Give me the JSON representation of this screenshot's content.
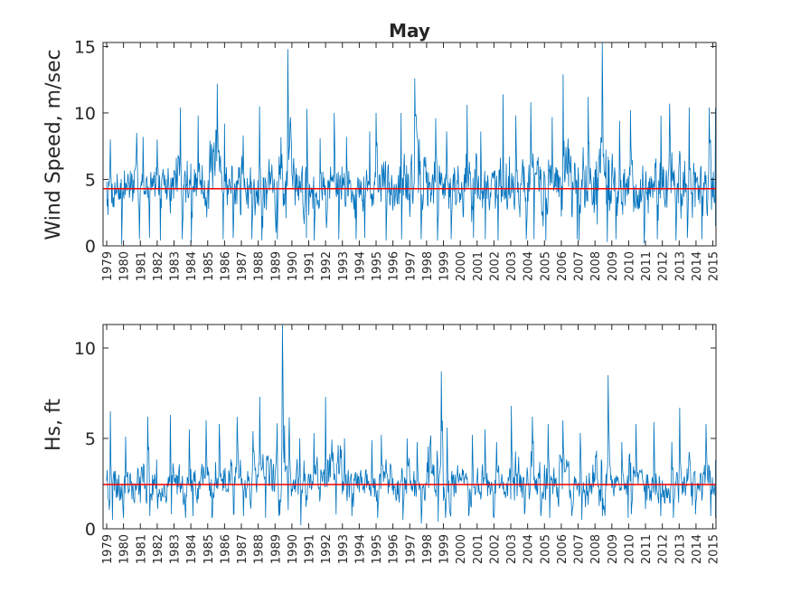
{
  "chart_data": [
    {
      "type": "line",
      "title": "May",
      "xlabel": "",
      "ylabel": "Wind Speed, m/sec",
      "ylim": [
        0,
        15.3
      ],
      "yticks": [
        0,
        5,
        10,
        15
      ],
      "grid": false,
      "xticks": [
        "1979",
        "1980",
        "1981",
        "1982",
        "1983",
        "1984",
        "1985",
        "1986",
        "1987",
        "1988",
        "1989",
        "1990",
        "1991",
        "1992",
        "1993",
        "1994",
        "1995",
        "1996",
        "1997",
        "1998",
        "1999",
        "2000",
        "2001",
        "2002",
        "2003",
        "2004",
        "2005",
        "2006",
        "2007",
        "2008",
        "2009",
        "2010",
        "2011",
        "2012",
        "2013",
        "2014",
        "2015"
      ],
      "series_color": "#0072bd",
      "mean_value": 4.3,
      "mean_color": "#ff0000",
      "years": [
        1979,
        1980,
        1981,
        1982,
        1983,
        1984,
        1985,
        1986,
        1987,
        1988,
        1989,
        1990,
        1991,
        1992,
        1993,
        1994,
        1995,
        1996,
        1997,
        1998,
        1999,
        2000,
        2001,
        2002,
        2003,
        2004,
        2005,
        2006,
        2007,
        2008,
        2009,
        2010,
        2011,
        2012,
        2013,
        2014,
        2015
      ],
      "yearly_min": [
        0.1,
        0.5,
        0.6,
        0.4,
        0.5,
        0.3,
        0.5,
        0.6,
        0.5,
        0.4,
        0.5,
        0.6,
        0.4,
        0.5,
        0.5,
        0.6,
        0.4,
        0.5,
        0.5,
        0.4,
        0.5,
        0.6,
        0.5,
        0.4,
        0.5,
        0.5,
        0.4,
        0.5,
        0.4,
        0.3,
        0.5,
        0.2,
        0.5,
        0.4,
        0.6,
        0.5,
        1.5
      ],
      "yearly_max": [
        8.0,
        8.5,
        8.2,
        8.0,
        10.4,
        9.8,
        12.2,
        9.2,
        8.3,
        10.5,
        14.8,
        10.3,
        8.1,
        10.0,
        8.2,
        8.6,
        10.0,
        10.0,
        12.6,
        9.6,
        8.6,
        10.6,
        8.6,
        11.4,
        9.8,
        10.8,
        9.7,
        12.9,
        11.2,
        15.3,
        9.4,
        10.2,
        9.8,
        10.7,
        10.4,
        10.4,
        10.4
      ],
      "yearly_mean": [
        4.2,
        4.3,
        4.3,
        4.2,
        4.6,
        4.3,
        4.8,
        4.2,
        4.2,
        4.4,
        4.7,
        4.3,
        4.1,
        4.3,
        4.1,
        4.2,
        4.4,
        4.3,
        4.6,
        4.3,
        4.2,
        4.4,
        4.2,
        4.4,
        4.3,
        4.3,
        4.3,
        4.5,
        4.4,
        4.6,
        4.2,
        4.3,
        4.3,
        4.4,
        4.3,
        4.4,
        4.5
      ]
    },
    {
      "type": "line",
      "title": "",
      "xlabel": "",
      "ylabel": "Hs, ft",
      "ylim": [
        0,
        11.3
      ],
      "yticks": [
        0,
        5,
        10
      ],
      "grid": false,
      "xticks": [
        "1979",
        "1980",
        "1981",
        "1982",
        "1983",
        "1984",
        "1985",
        "1986",
        "1987",
        "1988",
        "1989",
        "1990",
        "1991",
        "1992",
        "1993",
        "1994",
        "1995",
        "1996",
        "1997",
        "1998",
        "1999",
        "2000",
        "2001",
        "2002",
        "2003",
        "2004",
        "2005",
        "2006",
        "2007",
        "2008",
        "2009",
        "2010",
        "2011",
        "2012",
        "2013",
        "2014",
        "2015"
      ],
      "series_color": "#0072bd",
      "mean_value": 2.45,
      "mean_color": "#ff0000",
      "years": [
        1979,
        1980,
        1981,
        1982,
        1983,
        1984,
        1985,
        1986,
        1987,
        1988,
        1989,
        1990,
        1991,
        1992,
        1993,
        1994,
        1995,
        1996,
        1997,
        1998,
        1999,
        2000,
        2001,
        2002,
        2003,
        2004,
        2005,
        2006,
        2007,
        2008,
        2009,
        2010,
        2011,
        2012,
        2013,
        2014,
        2015
      ],
      "yearly_min": [
        0.5,
        0.6,
        0.7,
        0.8,
        0.6,
        0.7,
        0.6,
        0.8,
        0.7,
        0.6,
        0.7,
        0.2,
        0.6,
        0.8,
        0.7,
        0.7,
        0.6,
        0.5,
        0.3,
        0.4,
        0.6,
        0.7,
        0.7,
        0.6,
        0.8,
        0.7,
        0.6,
        0.7,
        0.5,
        0.7,
        0.6,
        0.8,
        0.7,
        0.6,
        0.8,
        0.7,
        0.6
      ],
      "yearly_max": [
        6.5,
        5.1,
        6.2,
        6.3,
        5.5,
        6.0,
        5.8,
        6.2,
        5.4,
        7.3,
        11.3,
        5.0,
        5.3,
        7.3,
        5.0,
        4.9,
        5.2,
        5.0,
        4.8,
        8.7,
        5.6,
        5.2,
        5.5,
        4.8,
        6.8,
        6.2,
        5.8,
        6.0,
        5.3,
        8.5,
        4.8,
        5.8,
        5.9,
        4.8,
        6.7,
        5.8,
        3.8
      ],
      "yearly_mean": [
        2.4,
        2.5,
        2.4,
        2.3,
        2.4,
        2.5,
        2.6,
        2.4,
        2.5,
        2.7,
        3.0,
        2.3,
        2.4,
        2.8,
        2.3,
        2.4,
        2.4,
        2.3,
        2.2,
        2.9,
        2.3,
        2.4,
        2.5,
        2.3,
        2.6,
        2.4,
        2.4,
        2.5,
        2.2,
        2.5,
        2.3,
        2.4,
        2.3,
        2.3,
        2.4,
        2.4,
        2.3
      ]
    }
  ]
}
